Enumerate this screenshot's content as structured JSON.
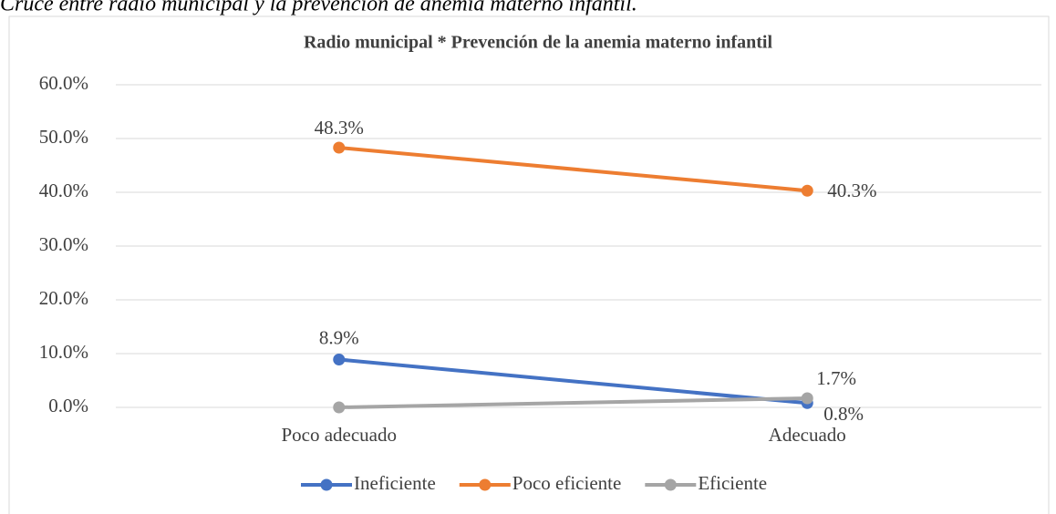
{
  "caption": "Cruce entre radio municipal y la prevención de anemia materno infantil.",
  "chart_data": {
    "type": "line",
    "title": "Radio municipal * Prevención de la anemia materno infantil",
    "categories": [
      "Poco adecuado",
      "Adecuado"
    ],
    "series": [
      {
        "name": "Ineficiente",
        "color": "#4472c4",
        "values": [
          8.9,
          0.8
        ],
        "value_labels": [
          "8.9%",
          "0.8%"
        ]
      },
      {
        "name": "Poco eficiente",
        "color": "#ed7d31",
        "values": [
          48.3,
          40.3
        ],
        "value_labels": [
          "48.3%",
          "40.3%"
        ]
      },
      {
        "name": "Eficiente",
        "color": "#a5a5a5",
        "values": [
          0,
          1.7
        ],
        "value_labels": [
          null,
          "1.7%"
        ]
      }
    ],
    "ylim": [
      0,
      60
    ],
    "yticks": [
      {
        "value": 0,
        "label": "0.0%"
      },
      {
        "value": 10,
        "label": "10.0%"
      },
      {
        "value": 20,
        "label": "20.0%"
      },
      {
        "value": 30,
        "label": "30.0%"
      },
      {
        "value": 40,
        "label": "40.0%"
      },
      {
        "value": 50,
        "label": "50.0%"
      },
      {
        "value": 60,
        "label": "60.0%"
      }
    ],
    "grid": true,
    "legend": "bottom"
  }
}
